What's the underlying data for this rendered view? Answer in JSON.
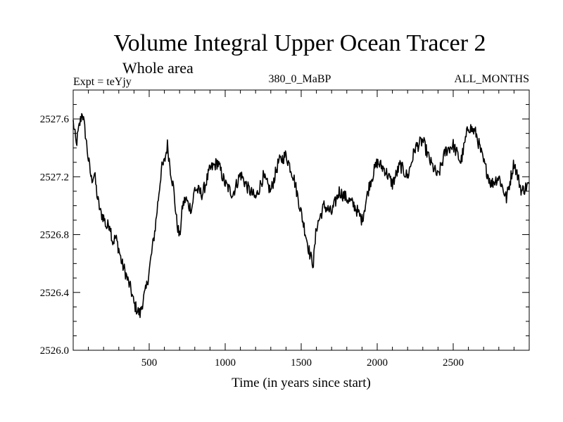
{
  "chart_data": {
    "type": "line",
    "title": "Volume Integral Upper Ocean Tracer 2",
    "subtitle": "Whole area",
    "left_label": "Expt = teYjy",
    "center_label": "380_0_MaBP",
    "right_label": "ALL_MONTHS",
    "xlabel": "Time (in years since start)",
    "ylabel": "",
    "xlim": [
      0,
      3000
    ],
    "ylim": [
      2526.0,
      2527.8
    ],
    "x_ticks": [
      500,
      1000,
      1500,
      2000,
      2500
    ],
    "x_tick_labels": [
      "500",
      "1000",
      "1500",
      "2000",
      "2500"
    ],
    "y_ticks": [
      2526.0,
      2526.4,
      2526.8,
      2527.2,
      2527.6
    ],
    "y_tick_labels": [
      "2526.0",
      "2526.4",
      "2526.8",
      "2527.2",
      "2527.6"
    ],
    "grid": false,
    "series": [
      {
        "name": "Volume Integral Upper Ocean Tracer 2",
        "x": [
          0,
          20,
          40,
          60,
          80,
          100,
          120,
          140,
          160,
          180,
          200,
          220,
          240,
          260,
          280,
          300,
          320,
          340,
          360,
          380,
          400,
          420,
          440,
          460,
          480,
          500,
          520,
          540,
          560,
          580,
          600,
          620,
          640,
          660,
          680,
          700,
          720,
          740,
          760,
          780,
          800,
          850,
          900,
          950,
          1000,
          1050,
          1100,
          1150,
          1200,
          1250,
          1300,
          1350,
          1400,
          1450,
          1500,
          1530,
          1560,
          1580,
          1600,
          1650,
          1700,
          1750,
          1800,
          1850,
          1900,
          1950,
          2000,
          2050,
          2100,
          2150,
          2200,
          2250,
          2300,
          2350,
          2400,
          2450,
          2500,
          2550,
          2600,
          2650,
          2700,
          2750,
          2800,
          2850,
          2900,
          2950,
          3000
        ],
        "y": [
          2527.58,
          2527.42,
          2527.55,
          2527.65,
          2527.5,
          2527.32,
          2527.18,
          2527.22,
          2527.05,
          2526.95,
          2526.92,
          2526.85,
          2526.88,
          2526.75,
          2526.78,
          2526.7,
          2526.6,
          2526.55,
          2526.48,
          2526.42,
          2526.32,
          2526.28,
          2526.25,
          2526.35,
          2526.42,
          2526.55,
          2526.7,
          2526.85,
          2527.05,
          2527.25,
          2527.3,
          2527.42,
          2527.25,
          2527.12,
          2526.9,
          2526.78,
          2527.0,
          2527.05,
          2527.0,
          2526.98,
          2527.12,
          2527.08,
          2527.25,
          2527.3,
          2527.15,
          2527.08,
          2527.22,
          2527.12,
          2527.05,
          2527.2,
          2527.1,
          2527.3,
          2527.35,
          2527.2,
          2526.95,
          2526.8,
          2526.65,
          2526.6,
          2526.85,
          2527.0,
          2526.95,
          2527.1,
          2527.05,
          2527.0,
          2526.9,
          2527.15,
          2527.3,
          2527.25,
          2527.15,
          2527.28,
          2527.2,
          2527.4,
          2527.45,
          2527.3,
          2527.2,
          2527.38,
          2527.42,
          2527.3,
          2527.55,
          2527.5,
          2527.3,
          2527.15,
          2527.2,
          2527.05,
          2527.3,
          2527.1,
          2527.15
        ]
      }
    ]
  }
}
